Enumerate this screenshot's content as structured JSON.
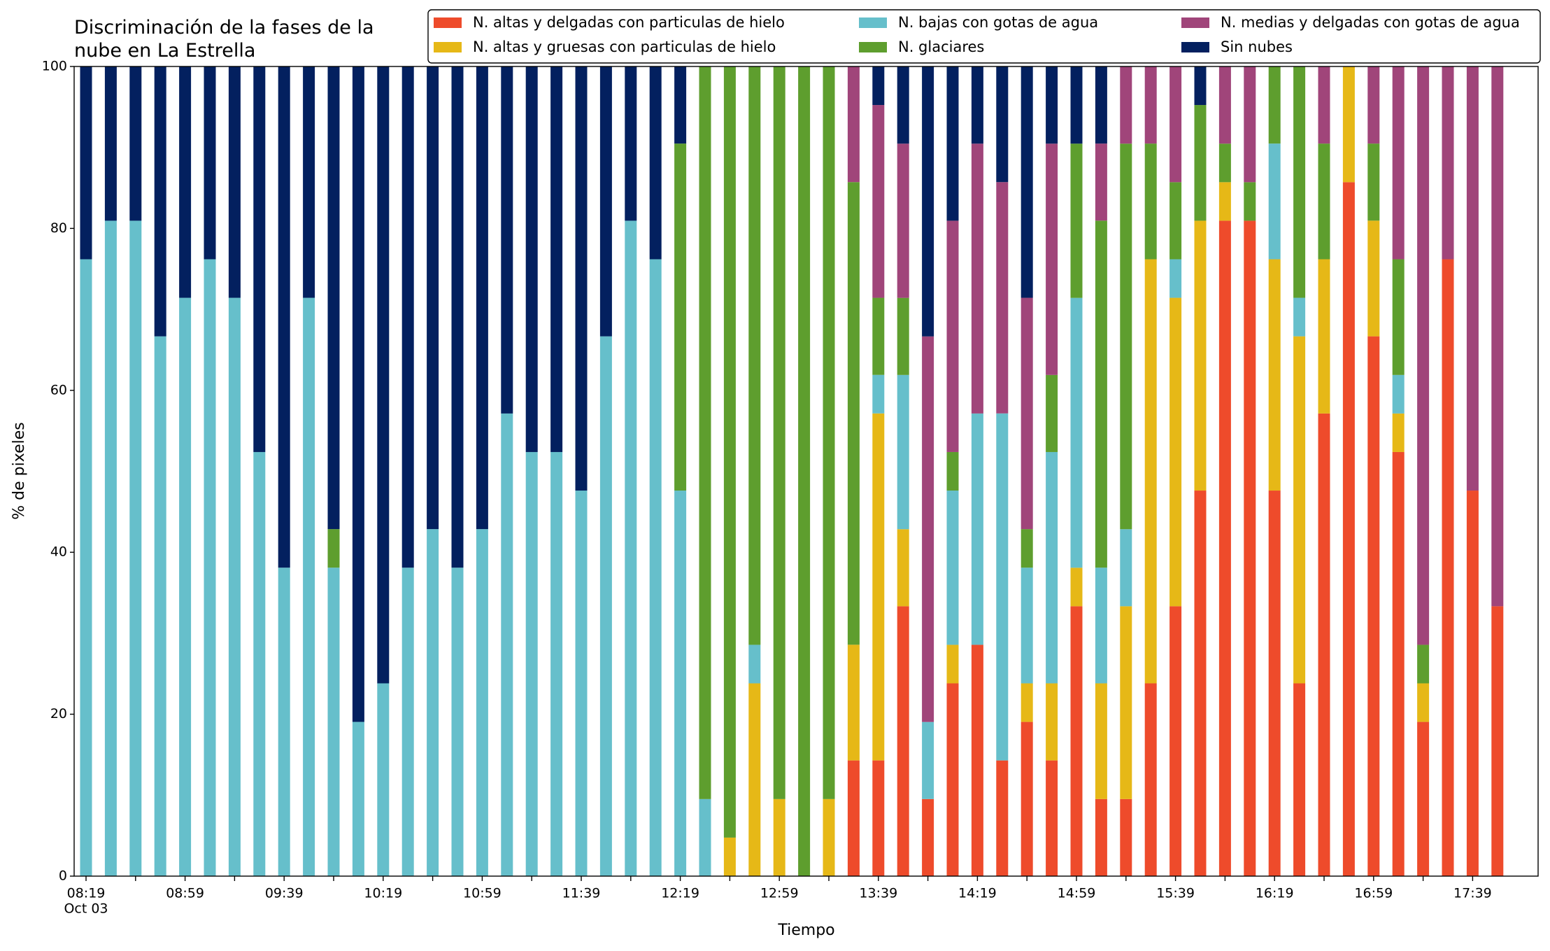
{
  "chart_data": {
    "type": "stacked_bar",
    "title": [
      "Discriminación de la fases de la",
      "nube en La Estrella"
    ],
    "x_label": "Tiempo",
    "y_label": "% de pixeles",
    "x_sublabel": "Oct 03",
    "categories": [
      "08:19",
      null,
      null,
      null,
      "08:59",
      null,
      null,
      null,
      "09:39",
      null,
      null,
      null,
      "10:19",
      null,
      null,
      null,
      "10:59",
      null,
      null,
      null,
      "11:39",
      null,
      null,
      null,
      "12:19",
      null,
      null,
      null,
      "12:59",
      null,
      null,
      null,
      "13:39",
      null,
      null,
      null,
      "14:19",
      null,
      null,
      null,
      "14:59",
      null,
      null,
      null,
      "15:39",
      null,
      null,
      null,
      "16:19",
      null,
      null,
      null,
      "16:59",
      null,
      null,
      null,
      "17:39",
      null
    ],
    "ylim": [
      0,
      100
    ],
    "yticks": [
      0,
      20,
      40,
      60,
      80,
      100
    ],
    "grid": false,
    "legend": "top-right",
    "series": [
      {
        "name": "N. altas y delgadas con particulas de hielo",
        "color": "#ee4b2b",
        "values": [
          0,
          0,
          0,
          0,
          0,
          0,
          0,
          0,
          0,
          0,
          0,
          0,
          0,
          0,
          0,
          0,
          0,
          0,
          0,
          0,
          0,
          0,
          0,
          0,
          0,
          0,
          0,
          0,
          0,
          0,
          0,
          14.29,
          14.29,
          33.33,
          9.52,
          23.81,
          28.57,
          14.29,
          19.05,
          14.29,
          33.33,
          9.52,
          9.52,
          23.81,
          33.33,
          47.62,
          80.95,
          80.95,
          47.62,
          23.81,
          57.14,
          85.71,
          66.67,
          52.38,
          19.05,
          76.19,
          47.62,
          33.33
        ]
      },
      {
        "name": "N. altas y gruesas con particulas de hielo",
        "color": "#e6b817",
        "values": [
          0,
          0,
          0,
          0,
          0,
          0,
          0,
          0,
          0,
          0,
          0,
          0,
          0,
          0,
          0,
          0,
          0,
          0,
          0,
          0,
          0,
          0,
          0,
          0,
          0,
          0,
          4.76,
          23.81,
          9.52,
          0,
          9.52,
          14.29,
          42.86,
          9.52,
          0,
          4.76,
          0,
          0,
          4.76,
          9.52,
          4.76,
          14.29,
          23.81,
          52.38,
          38.1,
          33.33,
          4.76,
          0,
          28.57,
          42.86,
          19.05,
          14.29,
          14.29,
          4.76,
          4.76,
          0,
          0,
          0
        ]
      },
      {
        "name": "N. bajas con gotas de agua",
        "color": "#66bfcb",
        "values": [
          76.19,
          80.95,
          80.95,
          66.67,
          71.43,
          76.19,
          71.43,
          52.38,
          38.1,
          71.43,
          38.1,
          19.05,
          23.81,
          38.1,
          42.86,
          38.1,
          42.86,
          57.14,
          52.38,
          52.38,
          47.62,
          66.67,
          80.95,
          76.19,
          47.62,
          9.52,
          0,
          4.76,
          0,
          0,
          0,
          0,
          4.76,
          19.05,
          9.52,
          19.05,
          28.57,
          42.86,
          14.29,
          28.57,
          33.33,
          14.29,
          9.52,
          0,
          4.76,
          0,
          0,
          0,
          14.29,
          4.76,
          0,
          0,
          0,
          4.76,
          0,
          0,
          0,
          0
        ]
      },
      {
        "name": "N. glaciares",
        "color": "#5e9e2e",
        "values": [
          0,
          0,
          0,
          0,
          0,
          0,
          0,
          0,
          0,
          0,
          4.76,
          0,
          0,
          0,
          0,
          0,
          0,
          0,
          0,
          0,
          0,
          0,
          0,
          0,
          42.86,
          90.48,
          95.24,
          71.43,
          90.48,
          100,
          90.48,
          57.14,
          9.52,
          9.52,
          0,
          4.76,
          0,
          0,
          4.76,
          9.52,
          19.05,
          42.86,
          47.62,
          14.29,
          9.52,
          14.29,
          4.76,
          4.76,
          9.52,
          28.57,
          14.29,
          0,
          9.52,
          14.29,
          4.76,
          0,
          0,
          0
        ]
      },
      {
        "name": "N. medias y delgadas con gotas de agua",
        "color": "#a0457a",
        "values": [
          0,
          0,
          0,
          0,
          0,
          0,
          0,
          0,
          0,
          0,
          0,
          0,
          0,
          0,
          0,
          0,
          0,
          0,
          0,
          0,
          0,
          0,
          0,
          0,
          0,
          0,
          0,
          0,
          0,
          0,
          0,
          14.29,
          23.81,
          19.05,
          47.62,
          28.57,
          33.33,
          28.57,
          28.57,
          28.57,
          0,
          9.52,
          9.52,
          9.52,
          14.29,
          0,
          9.52,
          14.29,
          0,
          0,
          9.52,
          0,
          9.52,
          23.81,
          71.43,
          23.81,
          52.38,
          66.67
        ]
      },
      {
        "name": "Sin nubes",
        "color": "#03205f",
        "values": [
          23.81,
          19.05,
          19.05,
          33.33,
          28.57,
          23.81,
          28.57,
          47.62,
          61.9,
          28.57,
          57.14,
          80.95,
          76.19,
          61.9,
          57.14,
          61.9,
          57.14,
          42.86,
          47.62,
          47.62,
          52.38,
          33.33,
          19.05,
          23.81,
          9.52,
          0,
          0,
          0,
          0,
          0,
          0,
          0,
          4.76,
          9.52,
          33.33,
          19.05,
          9.52,
          14.29,
          28.57,
          9.52,
          9.52,
          9.52,
          0,
          0,
          0,
          4.76,
          0,
          0,
          0,
          0,
          0,
          0,
          0,
          0,
          0,
          0,
          0,
          0
        ]
      }
    ]
  }
}
